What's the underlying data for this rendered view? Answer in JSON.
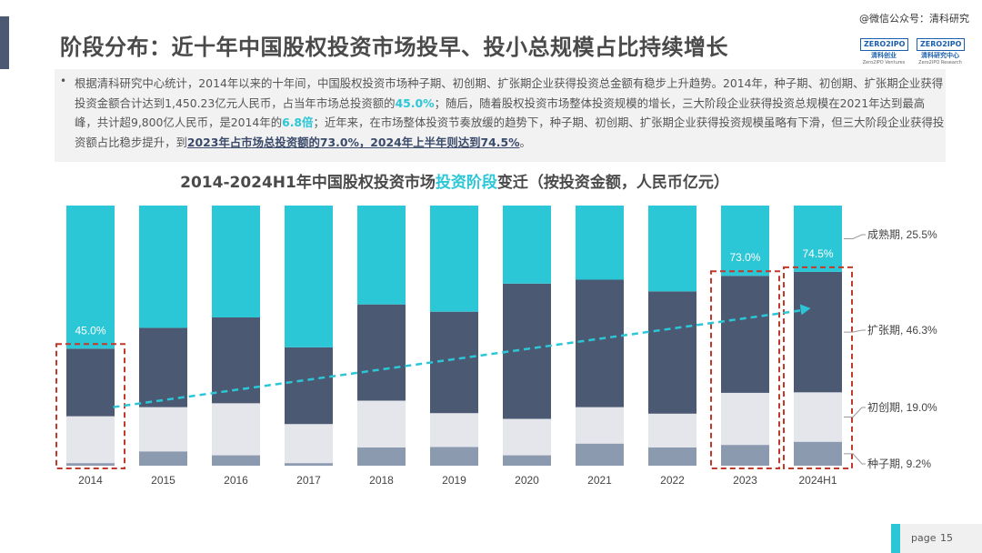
{
  "page": {
    "title": "阶段分布：近十年中国股权投资市场投早、投小总规模占比持续增长",
    "watermark": "@微信公众号：清科研究",
    "logos": [
      {
        "mark": "ZERO2IPO",
        "name": "清科创业",
        "sub": "Zero2IPO Ventures"
      },
      {
        "mark": "ZERO2IPO",
        "name": "清科研究中心",
        "sub": "Zero2IPO Research"
      }
    ],
    "page_label": "page",
    "page_number": "15",
    "colors": {
      "accent": "#2cc7d6",
      "dark_slate": "#4b5a72",
      "light_gray": "#e4e6ec",
      "seed_gray": "#8c9ab0",
      "title_bar": "#4b5a72",
      "highlight_box": "#c0392b",
      "trend": "#2cc7d6"
    }
  },
  "summary": {
    "bullet": "•",
    "parts": [
      {
        "t": "根据清科研究中心统计，2014年以来的十年间，中国股权投资市场种子期、初创期、扩张期企业获得投资总金额有稳步上升趋势。2014年，种子期、初创期、扩张期企业获得投资金额合计达到1,450.23亿元人民币，占当年市场总投资额的",
        "s": ""
      },
      {
        "t": "45.0%",
        "s": "hl"
      },
      {
        "t": "；随后，随着股权投资市场整体投资规模的增长，三大阶段企业获得投资总规模在2021年达到最高峰，共计超9,800亿人民币，是2014年的",
        "s": ""
      },
      {
        "t": "6.8倍",
        "s": "hl"
      },
      {
        "t": "；近年来，在市场整体投资节奏放缓的趋势下，种子期、初创期、扩张期企业获得投资规模虽略有下滑，但三大阶段企业获得投资额占比稳步提升，到",
        "s": ""
      },
      {
        "t": "2023年占市场总投资额的",
        "s": "ul"
      },
      {
        "t": "73.0%",
        "s": "ulhl"
      },
      {
        "t": "，2024年上半年则达到",
        "s": "ul"
      },
      {
        "t": "74.5%",
        "s": "ulhl"
      },
      {
        "t": "。",
        "s": ""
      }
    ]
  },
  "chart_title": {
    "prefix": "2014-2024H1年中国股权投资市场",
    "accent": "投资阶段",
    "suffix": "变迁（按投资金额，人民币亿元）"
  },
  "chart_data": {
    "type": "bar",
    "stacked": true,
    "normalized": true,
    "categories": [
      "2014",
      "2015",
      "2016",
      "2017",
      "2018",
      "2019",
      "2020",
      "2021",
      "2022",
      "2023",
      "2024H1"
    ],
    "series": [
      {
        "name": "种子期",
        "color": "#8c9ab0",
        "values": [
          0.01,
          0.055,
          0.04,
          0.01,
          0.07,
          0.072,
          0.04,
          0.085,
          0.07,
          0.08,
          0.092
        ]
      },
      {
        "name": "初创期",
        "color": "#e4e6ec",
        "values": [
          0.18,
          0.17,
          0.2,
          0.15,
          0.18,
          0.13,
          0.14,
          0.14,
          0.13,
          0.2,
          0.19
        ]
      },
      {
        "name": "扩张期",
        "color": "#4b5a72",
        "values": [
          0.26,
          0.305,
          0.33,
          0.295,
          0.37,
          0.39,
          0.52,
          0.49,
          0.47,
          0.45,
          0.463
        ]
      },
      {
        "name": "成熟期",
        "color": "#2cc7d6",
        "values": [
          0.55,
          0.47,
          0.43,
          0.545,
          0.38,
          0.408,
          0.3,
          0.285,
          0.33,
          0.27,
          0.255
        ]
      }
    ],
    "bar_labels": [
      {
        "category": "2014",
        "text": "45.0%"
      },
      {
        "category": "2023",
        "text": "73.0%"
      },
      {
        "category": "2024H1",
        "text": "74.5%"
      }
    ],
    "highlight_categories": [
      "2014",
      "2023",
      "2024H1"
    ],
    "legend_labels": [
      {
        "series": "成熟期",
        "text": "成熟期, 25.5%"
      },
      {
        "series": "扩张期",
        "text": "扩张期, 46.3%"
      },
      {
        "series": "初创期",
        "text": "初创期, 19.0%"
      },
      {
        "series": "种子期",
        "text": "种子期, 9.2%"
      }
    ],
    "legend_placement": "right",
    "trend_arrow": {
      "from": "2014",
      "to": "2024H1"
    },
    "ylim": [
      0,
      1
    ],
    "grid": false
  }
}
